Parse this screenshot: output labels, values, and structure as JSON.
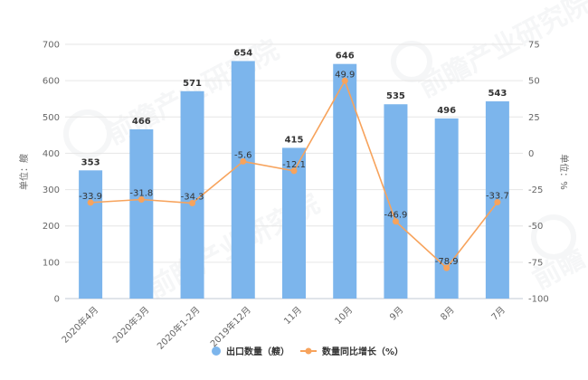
{
  "chart_data": {
    "type": "bar+line",
    "categories": [
      "2020年4月",
      "2020年3月",
      "2020年1-2月",
      "2019年12月",
      "11月",
      "10月",
      "9月",
      "8月",
      "7月"
    ],
    "series": [
      {
        "name": "出口数量（艘）",
        "type": "bar",
        "axis": "left",
        "color": "#7cb5ec",
        "values": [
          353,
          466,
          571,
          654,
          415,
          646,
          535,
          496,
          543
        ]
      },
      {
        "name": "数量同比增长（%）",
        "type": "line",
        "axis": "right",
        "color": "#f7a35c",
        "values": [
          -33.9,
          -31.8,
          -34.3,
          -5.6,
          -12.1,
          49.9,
          -46.9,
          -78.9,
          -33.7
        ]
      }
    ],
    "ylabel_left": "单位：艘",
    "ylabel_right": "单位：%",
    "ylim_left": [
      0,
      700
    ],
    "yticks_left": [
      0,
      100,
      200,
      300,
      400,
      500,
      600,
      700
    ],
    "ylim_right": [
      -100,
      75
    ],
    "yticks_right": [
      -100,
      -75,
      -50,
      -25,
      0,
      25,
      50,
      75
    ],
    "grid": true,
    "legend_position": "bottom"
  },
  "legend": {
    "bar_label": "出口数量（艘）",
    "line_label": "数量同比增长（%）"
  },
  "watermark": "前瞻产业研究院"
}
